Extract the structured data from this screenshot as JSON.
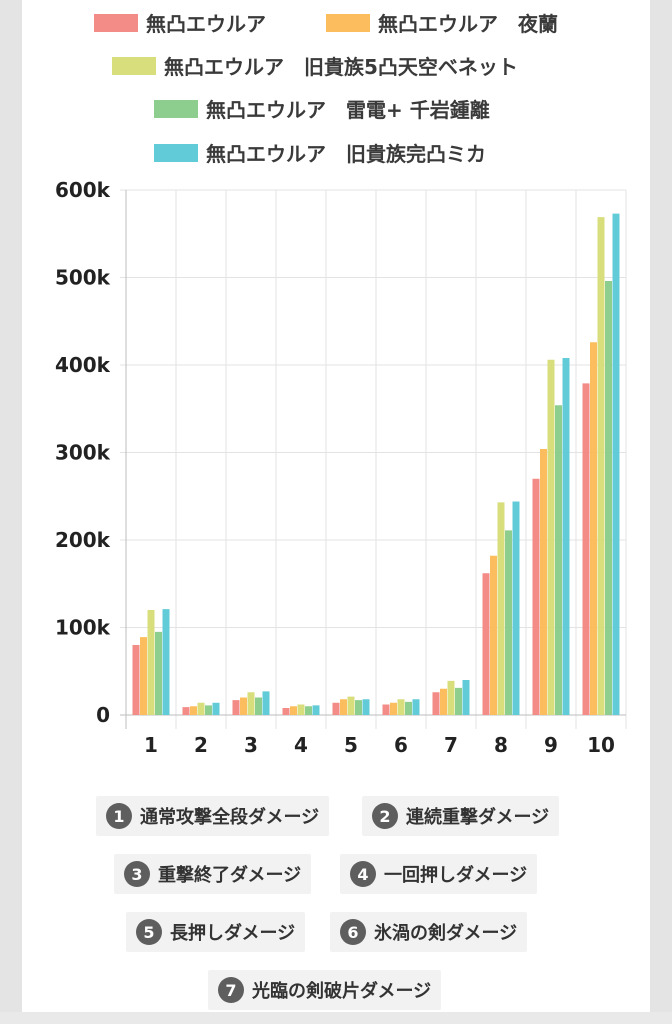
{
  "chart_data": {
    "type": "bar",
    "title": "",
    "xlabel": "",
    "ylabel": "",
    "categories": [
      "1",
      "2",
      "3",
      "4",
      "5",
      "6",
      "7",
      "8",
      "9",
      "10"
    ],
    "ylim": [
      0,
      600000
    ],
    "yticks": [
      0,
      100000,
      200000,
      300000,
      400000,
      500000,
      600000
    ],
    "ytick_labels": [
      "0",
      "100k",
      "200k",
      "300k",
      "400k",
      "500k",
      "600k"
    ],
    "grid": true,
    "legend_position": "top",
    "series": [
      {
        "name": "無凸エウルア",
        "color": "#f38b87",
        "values": [
          80000,
          9000,
          17000,
          8000,
          14000,
          12000,
          26000,
          162000,
          270000,
          379000
        ]
      },
      {
        "name": "無凸エウルア　夜蘭",
        "color": "#fbbd5e",
        "values": [
          89000,
          10000,
          20000,
          10000,
          18000,
          14000,
          30000,
          182000,
          304000,
          426000
        ]
      },
      {
        "name": "無凸エウルア　旧貴族5凸天空ベネット",
        "color": "#d9de7c",
        "values": [
          120000,
          14000,
          26000,
          12000,
          21000,
          18000,
          39000,
          243000,
          406000,
          569000
        ]
      },
      {
        "name": "無凸エウルア　雷電+ 千岩鍾離",
        "color": "#8dcd8e",
        "values": [
          95000,
          11000,
          20000,
          10000,
          17000,
          15000,
          31000,
          211000,
          354000,
          496000
        ]
      },
      {
        "name": "無凸エウルア　旧貴族完凸ミカ",
        "color": "#62cbd8",
        "values": [
          121000,
          14000,
          27000,
          11000,
          18000,
          18000,
          40000,
          244000,
          408000,
          573000
        ]
      }
    ]
  },
  "notes": [
    {
      "num": "1",
      "label": "通常攻撃全段ダメージ"
    },
    {
      "num": "2",
      "label": "連続重撃ダメージ"
    },
    {
      "num": "3",
      "label": "重撃終了ダメージ"
    },
    {
      "num": "4",
      "label": "一回押しダメージ"
    },
    {
      "num": "5",
      "label": "長押しダメージ"
    },
    {
      "num": "6",
      "label": "氷渦の剣ダメージ"
    },
    {
      "num": "7",
      "label": "光臨の剣破片ダメージ"
    }
  ]
}
